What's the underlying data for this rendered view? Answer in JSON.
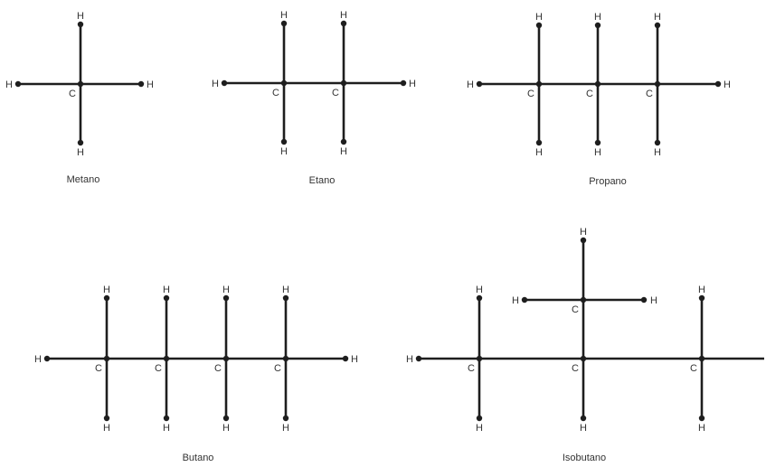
{
  "colors": {
    "bond": "#1e1e1e",
    "text": "#333333",
    "background": "#ffffff"
  },
  "atom_labels": {
    "carbon": "C",
    "hydrogen": "H"
  },
  "molecules": [
    {
      "id": "metano",
      "name": "Metano",
      "carbons": 1
    },
    {
      "id": "etano",
      "name": "Etano",
      "carbons": 2
    },
    {
      "id": "propano",
      "name": "Propano",
      "carbons": 3
    },
    {
      "id": "butano",
      "name": "Butano",
      "carbons": 4
    },
    {
      "id": "isobutano",
      "name": "Isobutano",
      "carbons": 4
    }
  ]
}
